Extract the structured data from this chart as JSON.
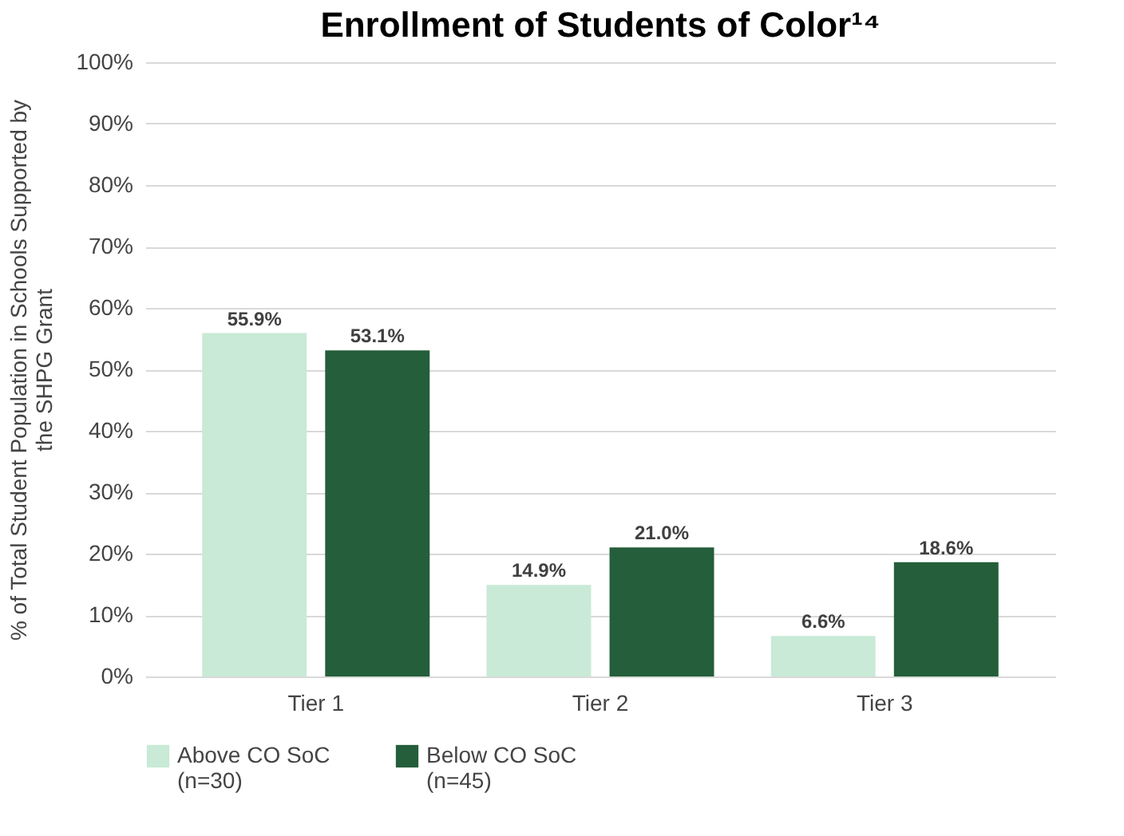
{
  "chart_data": {
    "type": "bar",
    "title": "Enrollment of Students of Color¹⁴",
    "ylabel": "% of Total Student Population in Schools Supported by\nthe SHPG Grant",
    "categories": [
      "Tier 1",
      "Tier 2",
      "Tier 3"
    ],
    "series": [
      {
        "name": "Above CO SoC\n(n=30)",
        "color": "#c8ead6",
        "values": [
          55.9,
          14.9,
          6.6
        ],
        "value_labels": [
          "55.9%",
          "14.9%",
          "6.6%"
        ]
      },
      {
        "name": "Below CO SoC\n(n=45)",
        "color": "#245e3a",
        "values": [
          53.1,
          21.0,
          18.6
        ],
        "value_labels": [
          "53.1%",
          "21.0%",
          "18.6%"
        ]
      }
    ],
    "ylim": [
      0,
      100
    ],
    "yticks": [
      {
        "value": 0,
        "label": "0%"
      },
      {
        "value": 10,
        "label": "10%"
      },
      {
        "value": 20,
        "label": "20%"
      },
      {
        "value": 30,
        "label": "30%"
      },
      {
        "value": 40,
        "label": "40%"
      },
      {
        "value": 50,
        "label": "50%"
      },
      {
        "value": 60,
        "label": "60%"
      },
      {
        "value": 70,
        "label": "70%"
      },
      {
        "value": 80,
        "label": "80%"
      },
      {
        "value": 90,
        "label": "90%"
      },
      {
        "value": 100,
        "label": "100%"
      }
    ],
    "grid": "y",
    "legend": "bottom"
  }
}
